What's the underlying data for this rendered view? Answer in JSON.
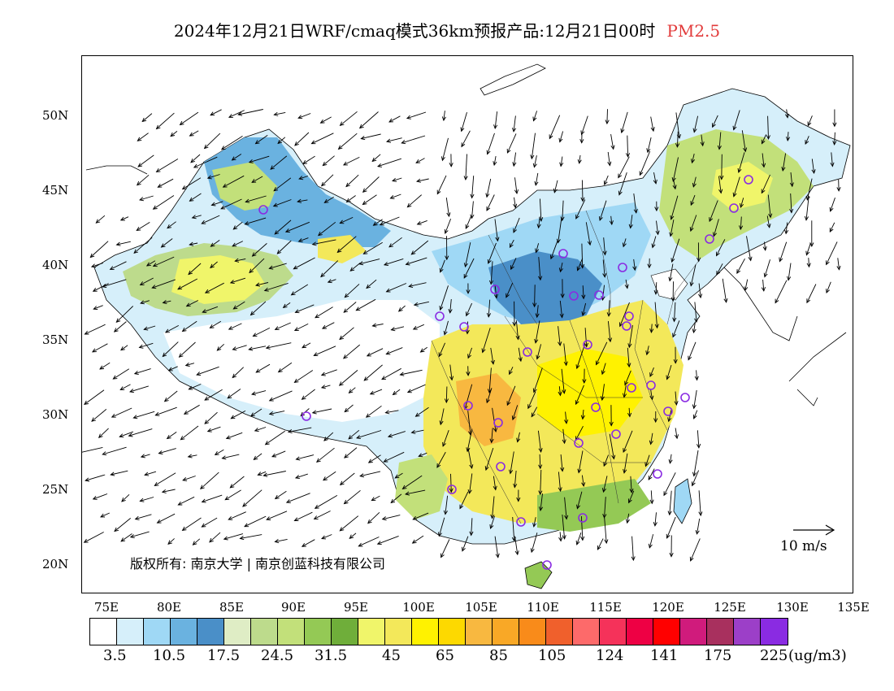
{
  "header": {
    "title": "2024年12月21日WRF/cmaq模式36km预报产品:12月21日00时",
    "pollutant": "PM2.5",
    "pollutant_color": "#e23b3b"
  },
  "map": {
    "lat_ticks": [
      "50N",
      "45N",
      "40N",
      "35N",
      "30N",
      "25N",
      "20N"
    ],
    "lon_ticks": [
      "75E",
      "80E",
      "85E",
      "90E",
      "95E",
      "100E",
      "105E",
      "110E",
      "115E",
      "120E",
      "125E",
      "130E",
      "135E"
    ],
    "wind_reference_label": "10 m/s",
    "copyright": "版权所有: 南京大学 | 南京创蓝科技有限公司"
  },
  "colorbar": {
    "colors": [
      "#ffffff",
      "#d6effa",
      "#9fd8f5",
      "#6ab2e0",
      "#4a8fc8",
      "#dfedc5",
      "#bddb8c",
      "#c2e07a",
      "#94c955",
      "#6fae3a",
      "#f0f56a",
      "#f3e85a",
      "#fff200",
      "#fdd900",
      "#f8b840",
      "#f9a826",
      "#f98b1a",
      "#f0602c",
      "#fd6a6a",
      "#f5325a",
      "#ee0044",
      "#ff0000",
      "#d01b7c",
      "#a8305e",
      "#9c3fc8",
      "#8a2be2"
    ],
    "labels": [
      "3.5",
      "10.5",
      "17.5",
      "24.5",
      "31.5",
      "45",
      "65",
      "85",
      "105",
      "124",
      "141",
      "175",
      "225"
    ],
    "unit": "(ug/m3)"
  }
}
